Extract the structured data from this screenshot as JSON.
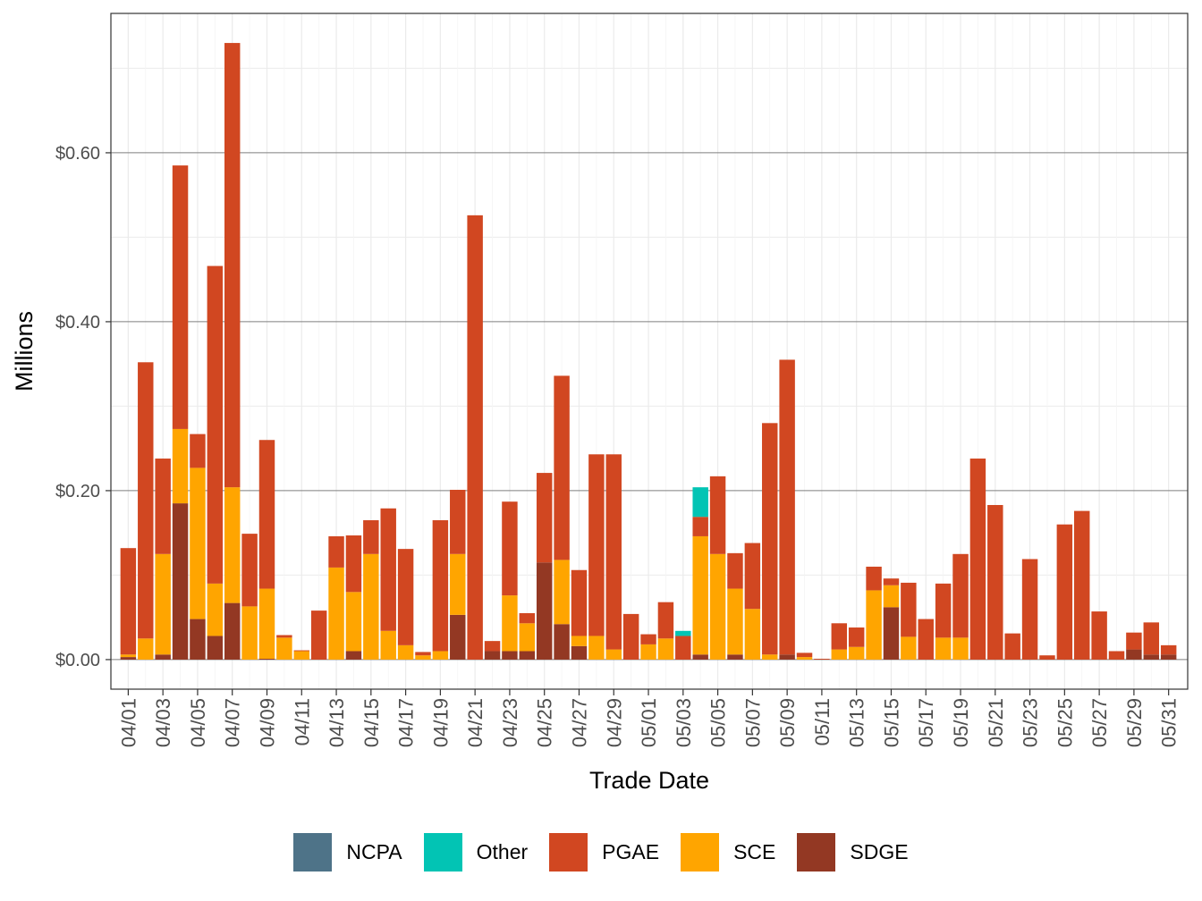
{
  "chart_data": {
    "type": "bar",
    "stacked": true,
    "xlabel": "Trade Date",
    "ylabel": "Millions",
    "ylim": [
      -0.035,
      0.765
    ],
    "y_ticks": [
      0,
      0.2,
      0.4,
      0.6
    ],
    "y_tick_labels": [
      "$0.00",
      "$0.20",
      "$0.40",
      "$0.60"
    ],
    "x_tick_labels": [
      "04/01",
      "04/03",
      "04/05",
      "04/07",
      "04/09",
      "04/11",
      "04/13",
      "04/15",
      "04/17",
      "04/19",
      "04/21",
      "04/23",
      "04/25",
      "04/27",
      "04/29",
      "05/01",
      "05/03",
      "05/05",
      "05/07",
      "05/09",
      "05/11",
      "05/13",
      "05/15",
      "05/17",
      "05/19",
      "05/21",
      "05/23",
      "05/25",
      "05/27",
      "05/29",
      "05/31"
    ],
    "grid": true,
    "legend_position": "bottom",
    "categories": [
      "04/01",
      "04/02",
      "04/03",
      "04/04",
      "04/05",
      "04/06",
      "04/07",
      "04/08",
      "04/09",
      "04/10",
      "04/11",
      "04/12",
      "04/13",
      "04/14",
      "04/15",
      "04/16",
      "04/17",
      "04/18",
      "04/19",
      "04/20",
      "04/21",
      "04/22",
      "04/23",
      "04/24",
      "04/25",
      "04/26",
      "04/27",
      "04/28",
      "04/29",
      "04/30",
      "05/01",
      "05/02",
      "05/03",
      "05/04",
      "05/05",
      "05/06",
      "05/07",
      "05/08",
      "05/09",
      "05/10",
      "05/11",
      "05/12",
      "05/13",
      "05/14",
      "05/15",
      "05/16",
      "05/17",
      "05/18",
      "05/19",
      "05/20",
      "05/21",
      "05/22",
      "05/23",
      "05/24",
      "05/25",
      "05/26",
      "05/27",
      "05/28",
      "05/29",
      "05/30",
      "05/31"
    ],
    "series": [
      {
        "name": "NCPA",
        "color": "#4e7388",
        "values": [
          0,
          0,
          0,
          0,
          0,
          0,
          0,
          0,
          0,
          0,
          0,
          0,
          0,
          0,
          0,
          0,
          0,
          0,
          0,
          0,
          0,
          0,
          0,
          0,
          0,
          0,
          0,
          0,
          0,
          0,
          0,
          0,
          0,
          0,
          0,
          0,
          0,
          0,
          0,
          0,
          0,
          0,
          0,
          0,
          0,
          0,
          0,
          0,
          0,
          0,
          0,
          0,
          0,
          0,
          0,
          0,
          0,
          0,
          0,
          0,
          0
        ]
      },
      {
        "name": "Other",
        "color": "#02c4b4",
        "values": [
          0,
          0,
          0,
          0,
          0,
          0,
          0,
          0,
          0,
          0,
          0,
          0,
          0,
          0,
          0,
          0,
          0,
          0,
          0,
          0,
          0,
          0,
          0,
          0,
          0,
          0,
          0,
          0,
          0,
          0,
          0,
          0,
          0.006,
          0.035,
          0,
          0,
          0,
          0,
          0,
          0,
          0,
          0,
          0,
          0,
          0,
          0,
          0,
          0,
          0,
          0,
          0,
          0,
          0,
          0,
          0,
          0,
          0,
          0,
          0,
          0,
          0
        ]
      },
      {
        "name": "PGAE",
        "color": "#d14721",
        "values": [
          0.126,
          0.327,
          0.113,
          0.312,
          0.04,
          0.376,
          0.526,
          0.086,
          0.176,
          0.003,
          0.001,
          0.058,
          0.037,
          0.067,
          0.04,
          0.145,
          0.114,
          0.004,
          0.155,
          0.076,
          0.526,
          0.012,
          0.111,
          0.012,
          0.106,
          0.218,
          0.078,
          0.215,
          0.231,
          0.054,
          0.012,
          0.043,
          0.028,
          0.023,
          0.092,
          0.042,
          0.078,
          0.274,
          0.349,
          0.005,
          0.001,
          0.031,
          0.023,
          0.028,
          0.008,
          0.064,
          0.048,
          0.064,
          0.099,
          0.238,
          0.183,
          0.031,
          0.119,
          0.005,
          0.16,
          0.176,
          0.057,
          0.01,
          0.02,
          0.038,
          0.011
        ]
      },
      {
        "name": "SCE",
        "color": "#ffa500",
        "values": [
          0.003,
          0.025,
          0.119,
          0.088,
          0.179,
          0.062,
          0.137,
          0.063,
          0.083,
          0.026,
          0.01,
          0.0,
          0.109,
          0.07,
          0.125,
          0.034,
          0.017,
          0.005,
          0.01,
          0.072,
          0.0,
          0.0,
          0.066,
          0.033,
          0.0,
          0.076,
          0.012,
          0.028,
          0.012,
          0.0,
          0.018,
          0.025,
          0.0,
          0.14,
          0.125,
          0.078,
          0.06,
          0.006,
          0.0,
          0.003,
          0.0,
          0.012,
          0.015,
          0.082,
          0.026,
          0.027,
          0.0,
          0.026,
          0.026,
          0.0,
          0.0,
          0.0,
          0.0,
          0.0,
          0.0,
          0.0,
          0.0,
          0.0,
          0.0,
          0.0,
          0.0
        ]
      },
      {
        "name": "SDGE",
        "color": "#933823",
        "values": [
          0.003,
          0.0,
          0.006,
          0.185,
          0.048,
          0.028,
          0.067,
          0.0,
          0.001,
          0.0,
          0.0,
          0.0,
          0.0,
          0.01,
          0.0,
          0.0,
          0.0,
          0.0,
          0.0,
          0.053,
          0.0,
          0.01,
          0.01,
          0.01,
          0.115,
          0.042,
          0.016,
          0.0,
          0.0,
          0.0,
          0.0,
          0.0,
          0.0,
          0.006,
          0.0,
          0.006,
          0.0,
          0.0,
          0.006,
          0.0,
          0.0,
          0.0,
          0.0,
          0.0,
          0.062,
          0.0,
          0.0,
          0.0,
          0.0,
          0.0,
          0.0,
          0.0,
          0.0,
          0.0,
          0.0,
          0.0,
          0.0,
          0.0,
          0.012,
          0.006,
          0.006
        ]
      }
    ]
  }
}
